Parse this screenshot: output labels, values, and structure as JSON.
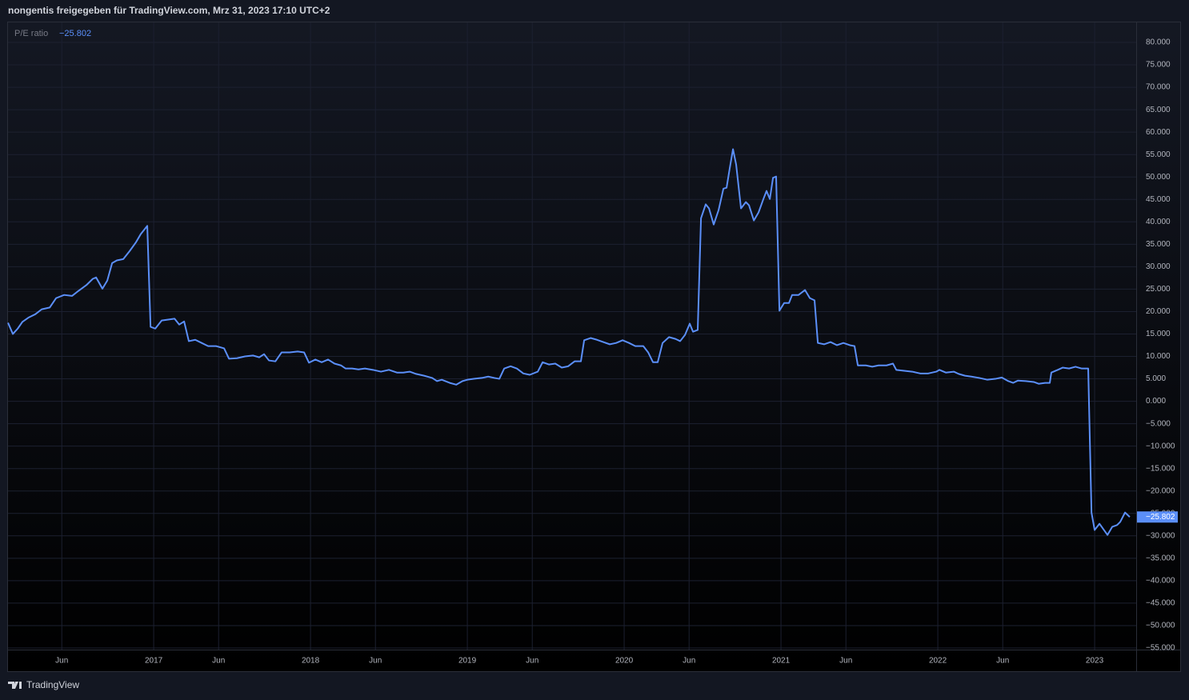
{
  "header": "nongentis freigegeben für TradingView.com, Mrz 31, 2023 17:10 UTC+2",
  "footer": "TradingView",
  "chart_data": {
    "type": "line",
    "xlim": [
      2016.071,
      2023.265
    ],
    "ylim": [
      -55.36,
      84.46
    ],
    "grid": true,
    "xticks": [
      {
        "value": 2016.414,
        "label": "Jun"
      },
      {
        "value": 2017,
        "label": "2017"
      },
      {
        "value": 2017.414,
        "label": "Jun"
      },
      {
        "value": 2018,
        "label": "2018"
      },
      {
        "value": 2018.414,
        "label": "Jun"
      },
      {
        "value": 2019,
        "label": "2019"
      },
      {
        "value": 2019.414,
        "label": "Jun"
      },
      {
        "value": 2020,
        "label": "2020"
      },
      {
        "value": 2020.414,
        "label": "Jun"
      },
      {
        "value": 2021,
        "label": "2021"
      },
      {
        "value": 2021.414,
        "label": "Jun"
      },
      {
        "value": 2022,
        "label": "2022"
      },
      {
        "value": 2022.414,
        "label": "Jun"
      },
      {
        "value": 2023,
        "label": "2023"
      }
    ],
    "yticks": [
      {
        "value": 80,
        "label": "80.000"
      },
      {
        "value": 75,
        "label": "75.000"
      },
      {
        "value": 70,
        "label": "70.000"
      },
      {
        "value": 65,
        "label": "65.000"
      },
      {
        "value": 60,
        "label": "60.000"
      },
      {
        "value": 55,
        "label": "55.000"
      },
      {
        "value": 50,
        "label": "50.000"
      },
      {
        "value": 45,
        "label": "45.000"
      },
      {
        "value": 40,
        "label": "40.000"
      },
      {
        "value": 35,
        "label": "35.000"
      },
      {
        "value": 30,
        "label": "30.000"
      },
      {
        "value": 25,
        "label": "25.000"
      },
      {
        "value": 20,
        "label": "20.000"
      },
      {
        "value": 15,
        "label": "15.000"
      },
      {
        "value": 10,
        "label": "10.000"
      },
      {
        "value": 5,
        "label": "5.000"
      },
      {
        "value": 0,
        "label": "0.000"
      },
      {
        "value": -5,
        "label": "−5.000"
      },
      {
        "value": -10,
        "label": "−10.000"
      },
      {
        "value": -15,
        "label": "−15.000"
      },
      {
        "value": -20,
        "label": "−20.000"
      },
      {
        "value": -25,
        "label": "−25.000"
      },
      {
        "value": -30,
        "label": "−30.000"
      },
      {
        "value": -35,
        "label": "−35.000"
      },
      {
        "value": -40,
        "label": "−40.000"
      },
      {
        "value": -45,
        "label": "−45.000"
      },
      {
        "value": -50,
        "label": "−50.000"
      },
      {
        "value": -55,
        "label": "−55.000"
      }
    ],
    "x": [
      2016.071,
      2016.102,
      2016.133,
      2016.163,
      2016.204,
      2016.245,
      2016.286,
      2016.337,
      2016.378,
      2016.429,
      2016.48,
      2016.52,
      2016.571,
      2016.612,
      2016.633,
      2016.673,
      2016.704,
      2016.735,
      2016.765,
      2016.806,
      2016.847,
      2016.888,
      2016.918,
      2016.959,
      2016.98,
      2017.01,
      2017.051,
      2017.092,
      2017.133,
      2017.163,
      2017.194,
      2017.224,
      2017.265,
      2017.306,
      2017.347,
      2017.398,
      2017.449,
      2017.48,
      2017.531,
      2017.582,
      2017.633,
      2017.673,
      2017.704,
      2017.735,
      2017.776,
      2017.816,
      2017.867,
      2017.918,
      2017.959,
      2017.99,
      2018.031,
      2018.071,
      2018.112,
      2018.153,
      2018.194,
      2018.224,
      2018.265,
      2018.306,
      2018.347,
      2018.398,
      2018.449,
      2018.5,
      2018.551,
      2018.592,
      2018.633,
      2018.673,
      2018.724,
      2018.776,
      2018.806,
      2018.837,
      2018.888,
      2018.929,
      2018.969,
      2019.0,
      2019.041,
      2019.092,
      2019.133,
      2019.173,
      2019.204,
      2019.235,
      2019.276,
      2019.316,
      2019.357,
      2019.398,
      2019.449,
      2019.48,
      2019.52,
      2019.561,
      2019.602,
      2019.643,
      2019.684,
      2019.724,
      2019.745,
      2019.786,
      2019.827,
      2019.867,
      2019.908,
      2019.949,
      2019.99,
      2020.031,
      2020.071,
      2020.122,
      2020.153,
      2020.184,
      2020.214,
      2020.245,
      2020.286,
      2020.327,
      2020.357,
      2020.388,
      2020.418,
      2020.439,
      2020.469,
      2020.49,
      2020.52,
      2020.541,
      2020.571,
      2020.602,
      2020.633,
      2020.653,
      2020.673,
      2020.694,
      2020.714,
      2020.745,
      2020.776,
      2020.796,
      2020.827,
      2020.857,
      2020.888,
      2020.908,
      2020.929,
      2020.949,
      2020.969,
      2020.99,
      2021.02,
      2021.051,
      2021.071,
      2021.112,
      2021.153,
      2021.184,
      2021.214,
      2021.235,
      2021.276,
      2021.316,
      2021.357,
      2021.398,
      2021.439,
      2021.469,
      2021.49,
      2021.541,
      2021.582,
      2021.622,
      2021.673,
      2021.714,
      2021.735,
      2021.786,
      2021.837,
      2021.888,
      2021.939,
      2021.99,
      2022.01,
      2022.051,
      2022.102,
      2022.133,
      2022.173,
      2022.214,
      2022.265,
      2022.316,
      2022.367,
      2022.408,
      2022.449,
      2022.48,
      2022.51,
      2022.561,
      2022.612,
      2022.643,
      2022.684,
      2022.714,
      2022.724,
      2022.765,
      2022.796,
      2022.837,
      2022.878,
      2022.918,
      2022.959,
      2022.98,
      2023.0,
      2023.031,
      2023.082,
      2023.112,
      2023.143,
      2023.163,
      2023.194,
      2023.224
    ],
    "series": [
      {
        "name": "P/E ratio",
        "color": "#5b8ff9",
        "values": [
          17.5,
          15.0,
          16.2,
          17.7,
          18.7,
          19.4,
          20.5,
          20.9,
          23.0,
          23.7,
          23.5,
          24.6,
          25.9,
          27.3,
          27.6,
          25.1,
          26.9,
          30.8,
          31.4,
          31.7,
          33.5,
          35.5,
          37.3,
          39.1,
          16.6,
          16.2,
          18.0,
          18.2,
          18.4,
          17.1,
          17.8,
          13.4,
          13.7,
          13.0,
          12.3,
          12.3,
          11.8,
          9.5,
          9.6,
          10.0,
          10.2,
          9.8,
          10.5,
          9.1,
          8.9,
          10.9,
          10.9,
          11.1,
          10.9,
          8.6,
          9.3,
          8.7,
          9.3,
          8.4,
          8.0,
          7.3,
          7.3,
          7.1,
          7.3,
          7.0,
          6.6,
          7.0,
          6.4,
          6.4,
          6.6,
          6.1,
          5.7,
          5.2,
          4.5,
          4.8,
          4.1,
          3.7,
          4.5,
          4.8,
          5.0,
          5.2,
          5.5,
          5.2,
          5.0,
          7.3,
          7.8,
          7.3,
          6.2,
          5.9,
          6.6,
          8.7,
          8.2,
          8.4,
          7.5,
          7.8,
          8.9,
          8.9,
          13.6,
          14.1,
          13.7,
          13.2,
          12.7,
          13.0,
          13.6,
          13.0,
          12.3,
          12.3,
          10.9,
          8.7,
          8.7,
          13.0,
          14.3,
          13.9,
          13.4,
          14.8,
          17.3,
          15.5,
          15.9,
          40.8,
          43.9,
          43.0,
          39.4,
          42.6,
          47.4,
          47.6,
          51.9,
          56.2,
          52.8,
          43.0,
          44.4,
          43.7,
          40.3,
          42.1,
          45.1,
          46.9,
          45.1,
          49.8,
          50.1,
          20.2,
          21.9,
          21.9,
          23.7,
          23.7,
          24.8,
          23.0,
          22.5,
          13.0,
          12.7,
          13.2,
          12.5,
          13.0,
          12.5,
          12.3,
          8.0,
          8.0,
          7.7,
          8.0,
          8.0,
          8.4,
          7.0,
          6.8,
          6.6,
          6.2,
          6.2,
          6.6,
          7.0,
          6.4,
          6.6,
          6.1,
          5.7,
          5.5,
          5.2,
          4.8,
          5.0,
          5.3,
          4.5,
          4.1,
          4.6,
          4.5,
          4.3,
          3.9,
          4.1,
          4.1,
          6.4,
          7.0,
          7.5,
          7.3,
          7.7,
          7.3,
          7.3,
          -24.8,
          -28.7,
          -27.3,
          -29.8,
          -28.0,
          -27.6,
          -26.9,
          -24.8,
          -25.802
        ]
      }
    ],
    "last_value_label": "−25.802"
  }
}
